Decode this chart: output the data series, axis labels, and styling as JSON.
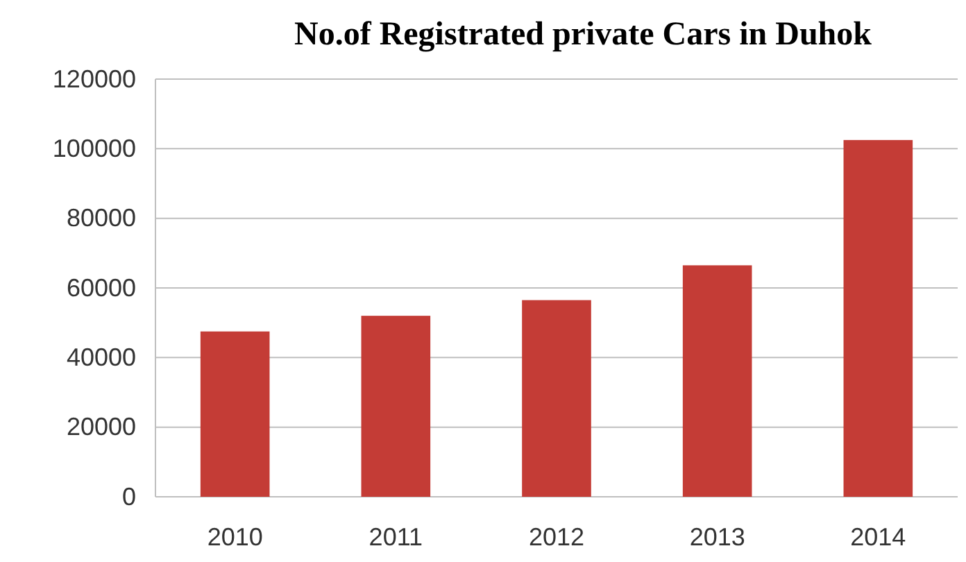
{
  "chart_data": {
    "type": "bar",
    "title": "No.of Registrated private Cars in Duhok",
    "categories": [
      "2010",
      "2011",
      "2012",
      "2013",
      "2014"
    ],
    "values": [
      47500,
      52000,
      56500,
      66500,
      102500
    ],
    "color": "#c43c36",
    "ylim": [
      0,
      120000
    ],
    "yticks": [
      0,
      20000,
      40000,
      60000,
      80000,
      100000,
      120000
    ],
    "grid": "y"
  }
}
